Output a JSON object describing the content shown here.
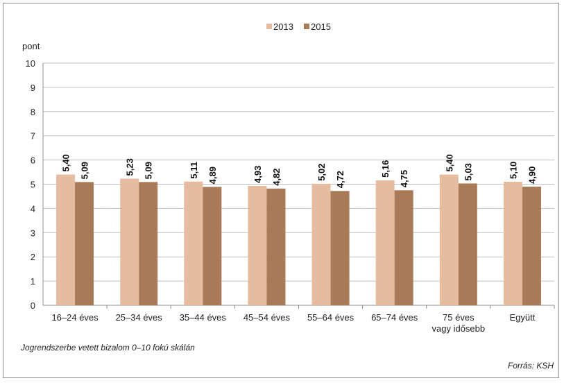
{
  "chart_data": {
    "type": "bar",
    "ylabel": "pont",
    "ylim": [
      0,
      10
    ],
    "yticks": [
      0,
      1,
      2,
      3,
      4,
      5,
      6,
      7,
      8,
      9,
      10
    ],
    "categories": [
      [
        "16–24 éves"
      ],
      [
        "25–34 éves"
      ],
      [
        "35–44 éves"
      ],
      [
        "45–54 éves"
      ],
      [
        "55–64 éves"
      ],
      [
        "65–74 éves"
      ],
      [
        "75 éves",
        "vagy idősebb"
      ],
      [
        "Együtt"
      ]
    ],
    "series": [
      {
        "name": "2013",
        "color": "#e6bca0",
        "values": [
          5.4,
          5.23,
          5.11,
          4.93,
          5.02,
          5.16,
          5.4,
          5.1
        ],
        "labels": [
          "5,40",
          "5,23",
          "5,11",
          "4,93",
          "5,02",
          "5,16",
          "5,40",
          "5,10"
        ]
      },
      {
        "name": "2015",
        "color": "#a87a57",
        "values": [
          5.09,
          5.09,
          4.89,
          4.82,
          4.72,
          4.75,
          5.03,
          4.9
        ],
        "labels": [
          "5,09",
          "5,09",
          "4,89",
          "4,82",
          "4,72",
          "4,75",
          "5,03",
          "4,90"
        ]
      }
    ],
    "legend_position": "top-center",
    "grid": true
  },
  "footer": {
    "note": "Jogrendszerbe vetett bizalom 0–10 fokú skálán",
    "source": "Forrás: KSH"
  }
}
